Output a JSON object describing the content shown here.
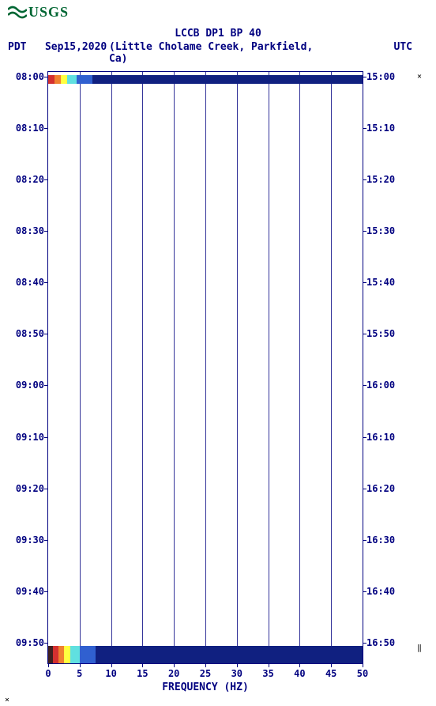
{
  "logo": {
    "text": "USGS",
    "color": "#006633"
  },
  "chart": {
    "type": "spectrogram",
    "title": "LCCB DP1 BP 40",
    "left_tz_label": "PDT",
    "date_label": "Sep15,2020",
    "location_label": "(Little Cholame Creek, Parkfield, Ca)",
    "right_tz_label": "UTC",
    "x_axis": {
      "label": "FREQUENCY (HZ)",
      "min": 0,
      "max": 50,
      "tick_step": 5,
      "ticks": [
        0,
        5,
        10,
        15,
        20,
        25,
        30,
        35,
        40,
        45,
        50
      ]
    },
    "y_axis_left": {
      "labels": [
        "08:00",
        "08:10",
        "08:20",
        "08:30",
        "08:40",
        "08:50",
        "09:00",
        "09:10",
        "09:20",
        "09:30",
        "09:40",
        "09:50"
      ],
      "positions_pct": [
        0.8,
        9.5,
        18.2,
        26.9,
        35.6,
        44.3,
        53.0,
        61.7,
        70.4,
        79.1,
        87.8,
        96.5
      ]
    },
    "y_axis_right": {
      "labels": [
        "15:00",
        "15:10",
        "15:20",
        "15:30",
        "15:40",
        "15:50",
        "16:00",
        "16:10",
        "16:20",
        "16:30",
        "16:40",
        "16:50"
      ],
      "positions_pct": [
        0.8,
        9.5,
        18.2,
        26.9,
        35.6,
        44.3,
        53.0,
        61.7,
        70.4,
        79.1,
        87.8,
        96.5
      ]
    },
    "bands": [
      {
        "top_pct": 0.5,
        "height_pct": 1.5,
        "segments": [
          {
            "width_pct": 2,
            "color": "#d43030"
          },
          {
            "width_pct": 2,
            "color": "#f08030"
          },
          {
            "width_pct": 2,
            "color": "#ffff40"
          },
          {
            "width_pct": 3,
            "color": "#60e0e0"
          },
          {
            "width_pct": 5,
            "color": "#3060d0"
          },
          {
            "width_pct": 86,
            "color": "#102080"
          }
        ]
      },
      {
        "top_pct": 97.0,
        "height_pct": 3.0,
        "segments": [
          {
            "width_pct": 1.5,
            "color": "#402020"
          },
          {
            "width_pct": 1.8,
            "color": "#d43030"
          },
          {
            "width_pct": 1.8,
            "color": "#f08030"
          },
          {
            "width_pct": 2.0,
            "color": "#ffff40"
          },
          {
            "width_pct": 3.0,
            "color": "#60e0e0"
          },
          {
            "width_pct": 5.0,
            "color": "#3060d0"
          },
          {
            "width_pct": 84.9,
            "color": "#102080"
          }
        ]
      }
    ],
    "right_marks": [
      {
        "top_pct": 0.8,
        "text": "×"
      },
      {
        "top_pct": 97.5,
        "text": "‖"
      }
    ],
    "colors": {
      "axis": "#000080",
      "background": "#ffffff",
      "title": "#000080"
    }
  }
}
